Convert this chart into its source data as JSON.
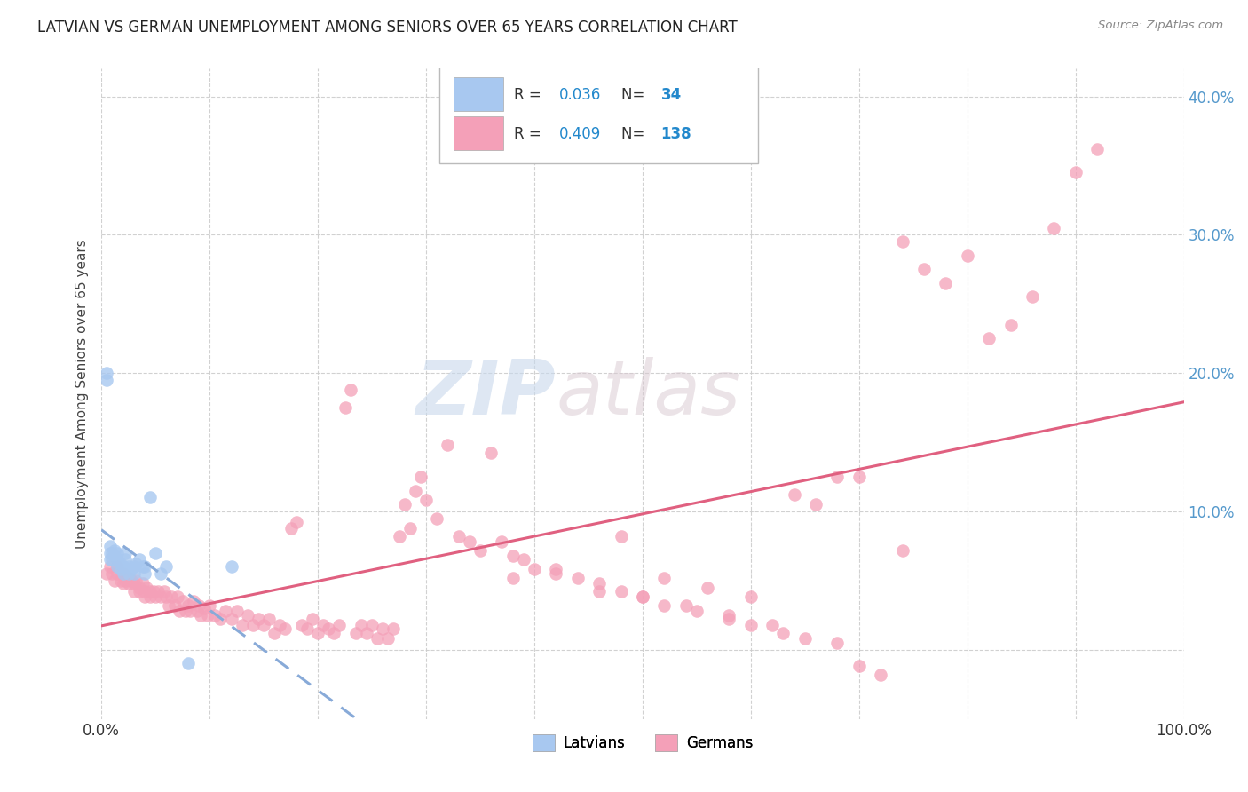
{
  "title": "LATVIAN VS GERMAN UNEMPLOYMENT AMONG SENIORS OVER 65 YEARS CORRELATION CHART",
  "source": "Source: ZipAtlas.com",
  "ylabel": "Unemployment Among Seniors over 65 years",
  "xlim": [
    0.0,
    1.0
  ],
  "ylim": [
    -0.05,
    0.42
  ],
  "xticks": [
    0.0,
    0.1,
    0.2,
    0.3,
    0.4,
    0.5,
    0.6,
    0.7,
    0.8,
    0.9,
    1.0
  ],
  "yticks": [
    0.0,
    0.1,
    0.2,
    0.3,
    0.4
  ],
  "ytick_labels": [
    "",
    "10.0%",
    "20.0%",
    "30.0%",
    "40.0%"
  ],
  "latvian_R": 0.036,
  "latvian_N": 34,
  "german_R": 0.409,
  "german_N": 138,
  "latvian_color": "#a8c8f0",
  "german_color": "#f4a0b8",
  "latvian_trend_color": "#88aad8",
  "german_trend_color": "#e06080",
  "watermark_zip": "ZIP",
  "watermark_atlas": "atlas",
  "background_color": "#ffffff",
  "grid_color": "#cccccc",
  "latvians_x": [
    0.005,
    0.005,
    0.008,
    0.008,
    0.008,
    0.01,
    0.01,
    0.012,
    0.012,
    0.015,
    0.015,
    0.015,
    0.018,
    0.018,
    0.02,
    0.02,
    0.022,
    0.022,
    0.025,
    0.025,
    0.028,
    0.03,
    0.03,
    0.032,
    0.035,
    0.038,
    0.04,
    0.04,
    0.045,
    0.05,
    0.055,
    0.06,
    0.08,
    0.12
  ],
  "latvians_y": [
    0.195,
    0.2,
    0.065,
    0.07,
    0.075,
    0.065,
    0.07,
    0.068,
    0.072,
    0.06,
    0.065,
    0.07,
    0.058,
    0.062,
    0.06,
    0.055,
    0.065,
    0.07,
    0.06,
    0.055,
    0.058,
    0.06,
    0.055,
    0.062,
    0.065,
    0.06,
    0.055,
    0.06,
    0.11,
    0.07,
    0.055,
    0.06,
    -0.01,
    0.06
  ],
  "germans_x": [
    0.005,
    0.008,
    0.01,
    0.012,
    0.015,
    0.015,
    0.018,
    0.02,
    0.02,
    0.022,
    0.025,
    0.025,
    0.028,
    0.03,
    0.03,
    0.032,
    0.035,
    0.035,
    0.038,
    0.04,
    0.04,
    0.042,
    0.045,
    0.045,
    0.048,
    0.05,
    0.052,
    0.055,
    0.058,
    0.06,
    0.062,
    0.065,
    0.068,
    0.07,
    0.072,
    0.075,
    0.078,
    0.08,
    0.082,
    0.085,
    0.088,
    0.09,
    0.092,
    0.095,
    0.098,
    0.1,
    0.105,
    0.11,
    0.115,
    0.12,
    0.125,
    0.13,
    0.135,
    0.14,
    0.145,
    0.15,
    0.155,
    0.16,
    0.165,
    0.17,
    0.175,
    0.18,
    0.185,
    0.19,
    0.195,
    0.2,
    0.205,
    0.21,
    0.215,
    0.22,
    0.225,
    0.23,
    0.235,
    0.24,
    0.245,
    0.25,
    0.255,
    0.26,
    0.265,
    0.27,
    0.275,
    0.28,
    0.285,
    0.29,
    0.295,
    0.3,
    0.31,
    0.32,
    0.33,
    0.34,
    0.35,
    0.36,
    0.37,
    0.38,
    0.39,
    0.4,
    0.42,
    0.44,
    0.46,
    0.48,
    0.5,
    0.52,
    0.55,
    0.58,
    0.6,
    0.63,
    0.65,
    0.68,
    0.7,
    0.72,
    0.74,
    0.76,
    0.78,
    0.8,
    0.82,
    0.84,
    0.86,
    0.88,
    0.9,
    0.92,
    0.38,
    0.42,
    0.46,
    0.5,
    0.54,
    0.58,
    0.62,
    0.66,
    0.7,
    0.74,
    0.48,
    0.52,
    0.56,
    0.6,
    0.64,
    0.68,
    0.72,
    0.76
  ],
  "germans_y": [
    0.055,
    0.06,
    0.055,
    0.05,
    0.055,
    0.06,
    0.05,
    0.055,
    0.048,
    0.05,
    0.052,
    0.048,
    0.05,
    0.048,
    0.042,
    0.05,
    0.045,
    0.042,
    0.048,
    0.042,
    0.038,
    0.045,
    0.042,
    0.038,
    0.042,
    0.038,
    0.042,
    0.038,
    0.042,
    0.038,
    0.032,
    0.038,
    0.032,
    0.038,
    0.028,
    0.035,
    0.028,
    0.032,
    0.028,
    0.035,
    0.028,
    0.032,
    0.025,
    0.03,
    0.025,
    0.032,
    0.025,
    0.022,
    0.028,
    0.022,
    0.028,
    0.018,
    0.025,
    0.018,
    0.022,
    0.018,
    0.022,
    0.012,
    0.018,
    0.015,
    0.088,
    0.092,
    0.018,
    0.015,
    0.022,
    0.012,
    0.018,
    0.015,
    0.012,
    0.018,
    0.175,
    0.188,
    0.012,
    0.018,
    0.012,
    0.018,
    0.008,
    0.015,
    0.008,
    0.015,
    0.082,
    0.105,
    0.088,
    0.115,
    0.125,
    0.108,
    0.095,
    0.148,
    0.082,
    0.078,
    0.072,
    0.142,
    0.078,
    0.068,
    0.065,
    0.058,
    0.055,
    0.052,
    0.048,
    0.042,
    0.038,
    0.032,
    0.028,
    0.022,
    0.018,
    0.012,
    0.008,
    0.005,
    -0.012,
    -0.018,
    0.295,
    0.275,
    0.265,
    0.285,
    0.225,
    0.235,
    0.255,
    0.305,
    0.345,
    0.362,
    0.052,
    0.058,
    0.042,
    0.038,
    0.032,
    0.025,
    0.018,
    0.105,
    0.125,
    0.072,
    0.082,
    0.052,
    0.045,
    0.038,
    0.112,
    0.125
  ]
}
